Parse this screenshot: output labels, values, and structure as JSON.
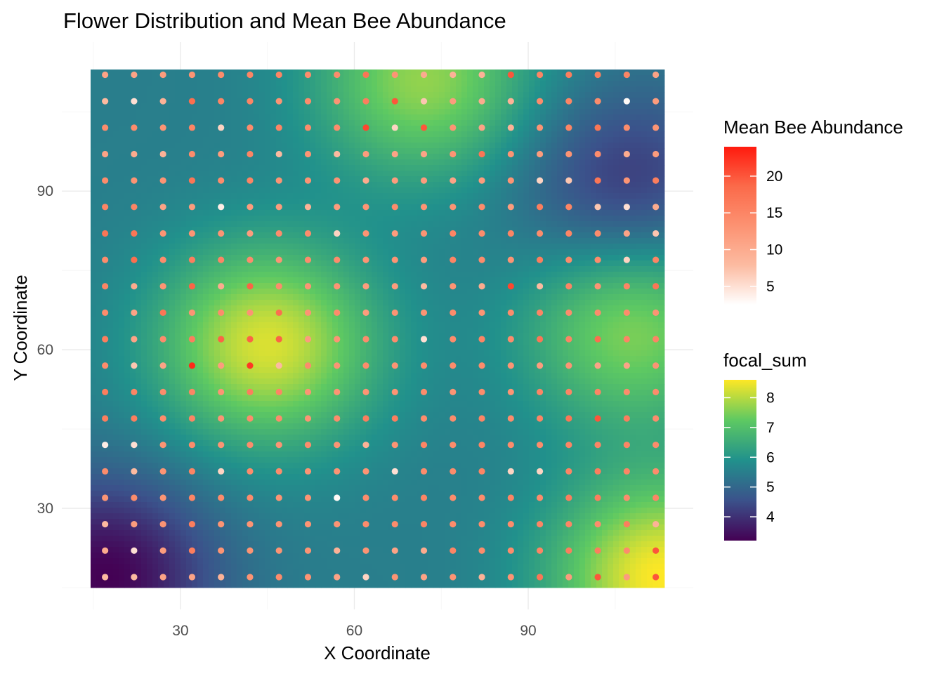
{
  "chart_data": {
    "type": "heatmap",
    "title": "Flower Distribution and Mean Bee Abundance",
    "xlabel": "X Coordinate",
    "ylabel": "Y Coordinate",
    "xlim": [
      14.5,
      113.5
    ],
    "ylim": [
      15,
      113
    ],
    "x_ticks": [
      30,
      60,
      90
    ],
    "y_ticks": [
      30,
      60,
      90
    ],
    "grid": true,
    "heatmap": {
      "name": "focal_sum",
      "range": [
        3.2,
        8.6
      ],
      "colorbar_ticks": [
        4,
        5,
        6,
        7,
        8
      ],
      "colors": [
        "#440154",
        "#3b528b",
        "#21918c",
        "#5ec962",
        "#fde725"
      ],
      "peaks": [
        {
          "x": 45,
          "y": 61,
          "value": 8.3
        },
        {
          "x": 72,
          "y": 111,
          "value": 7.7
        },
        {
          "x": 108,
          "y": 64,
          "value": 7.6
        },
        {
          "x": 113,
          "y": 17,
          "value": 8.6
        },
        {
          "x": 17,
          "y": 17,
          "value": 3.2
        },
        {
          "x": 107,
          "y": 91,
          "value": 4.1
        }
      ]
    },
    "points": {
      "name": "Mean Bee Abundance",
      "range": [
        2.5,
        24
      ],
      "colorbar_ticks": [
        5,
        10,
        15,
        20
      ],
      "colors": [
        "#ffffff",
        "#fcbba1",
        "#fc9272",
        "#fb6a4a",
        "#ff1a0e"
      ],
      "x": [
        17,
        22,
        27,
        32,
        37,
        42,
        47,
        52,
        57,
        62,
        67,
        72,
        77,
        82,
        87,
        92,
        97,
        102,
        107,
        112
      ],
      "y": [
        112,
        107,
        102,
        97,
        92,
        87,
        82,
        77,
        72,
        67,
        62,
        57,
        52,
        47,
        42,
        37,
        32,
        27,
        22,
        17
      ],
      "values": [
        [
          11,
          11,
          12,
          13,
          14,
          15,
          15,
          14,
          14,
          17,
          13,
          10,
          9,
          9,
          20,
          15,
          16,
          16,
          15,
          11
        ],
        [
          8,
          5,
          9,
          18,
          15,
          15,
          13,
          14,
          13,
          16,
          20,
          7,
          12,
          10,
          9,
          14,
          15,
          14,
          3,
          12
        ],
        [
          14,
          14,
          13,
          15,
          6,
          14,
          15,
          14,
          14,
          21,
          6,
          20,
          13,
          11,
          9,
          13,
          15,
          17,
          14,
          13
        ],
        [
          11,
          10,
          9,
          14,
          12,
          15,
          8,
          13,
          8,
          12,
          11,
          11,
          13,
          17,
          13,
          12,
          13,
          14,
          10,
          12
        ],
        [
          14,
          13,
          13,
          17,
          14,
          15,
          13,
          13,
          13,
          10,
          12,
          12,
          11,
          12,
          13,
          6,
          7,
          17,
          13,
          16
        ],
        [
          15,
          15,
          11,
          12,
          4,
          12,
          12,
          9,
          12,
          13,
          14,
          13,
          13,
          14,
          12,
          16,
          15,
          7,
          5,
          10
        ],
        [
          17,
          17,
          13,
          13,
          13,
          12,
          14,
          14,
          6,
          13,
          12,
          13,
          15,
          14,
          15,
          14,
          15,
          14,
          11,
          7
        ],
        [
          14,
          18,
          14,
          16,
          15,
          14,
          13,
          14,
          14,
          13,
          13,
          12,
          15,
          14,
          13,
          16,
          14,
          14,
          6,
          15
        ],
        [
          15,
          10,
          13,
          19,
          10,
          19,
          14,
          13,
          13,
          12,
          12,
          8,
          13,
          10,
          21,
          8,
          15,
          13,
          15,
          17
        ],
        [
          14,
          11,
          17,
          13,
          14,
          13,
          18,
          13,
          14,
          12,
          13,
          13,
          14,
          13,
          14,
          15,
          14,
          14,
          14,
          13
        ],
        [
          16,
          11,
          14,
          16,
          19,
          19,
          19,
          12,
          13,
          14,
          14,
          5,
          14,
          15,
          14,
          17,
          15,
          18,
          15,
          15
        ],
        [
          14,
          7,
          11,
          23,
          12,
          22,
          8,
          14,
          13,
          14,
          13,
          14,
          14,
          14,
          13,
          12,
          13,
          11,
          11,
          13
        ],
        [
          16,
          15,
          14,
          15,
          13,
          16,
          15,
          13,
          13,
          13,
          13,
          14,
          13,
          14,
          13,
          15,
          15,
          15,
          14,
          14
        ],
        [
          16,
          16,
          14,
          15,
          13,
          14,
          14,
          13,
          14,
          16,
          16,
          14,
          14,
          15,
          14,
          15,
          17,
          20,
          16,
          14
        ],
        [
          4,
          5,
          13,
          14,
          13,
          14,
          13,
          14,
          13,
          9,
          13,
          15,
          14,
          15,
          14,
          14,
          15,
          15,
          15,
          14
        ],
        [
          14,
          8,
          13,
          15,
          6,
          14,
          14,
          13,
          13,
          13,
          5,
          14,
          14,
          15,
          6,
          6,
          15,
          16,
          15,
          14
        ],
        [
          13,
          14,
          13,
          15,
          14,
          14,
          13,
          13,
          3,
          14,
          14,
          15,
          14,
          14,
          15,
          14,
          16,
          16,
          14,
          15
        ],
        [
          8,
          12,
          13,
          16,
          13,
          13,
          13,
          13,
          13,
          14,
          14,
          15,
          14,
          14,
          14,
          15,
          15,
          14,
          16,
          9
        ],
        [
          10,
          5,
          12,
          16,
          13,
          13,
          13,
          13,
          9,
          13,
          11,
          10,
          15,
          14,
          14,
          15,
          16,
          16,
          14,
          20
        ],
        [
          8,
          8,
          11,
          11,
          9,
          13,
          14,
          13,
          11,
          6,
          13,
          11,
          13,
          9,
          13,
          17,
          12,
          20,
          12,
          20
        ]
      ]
    }
  }
}
